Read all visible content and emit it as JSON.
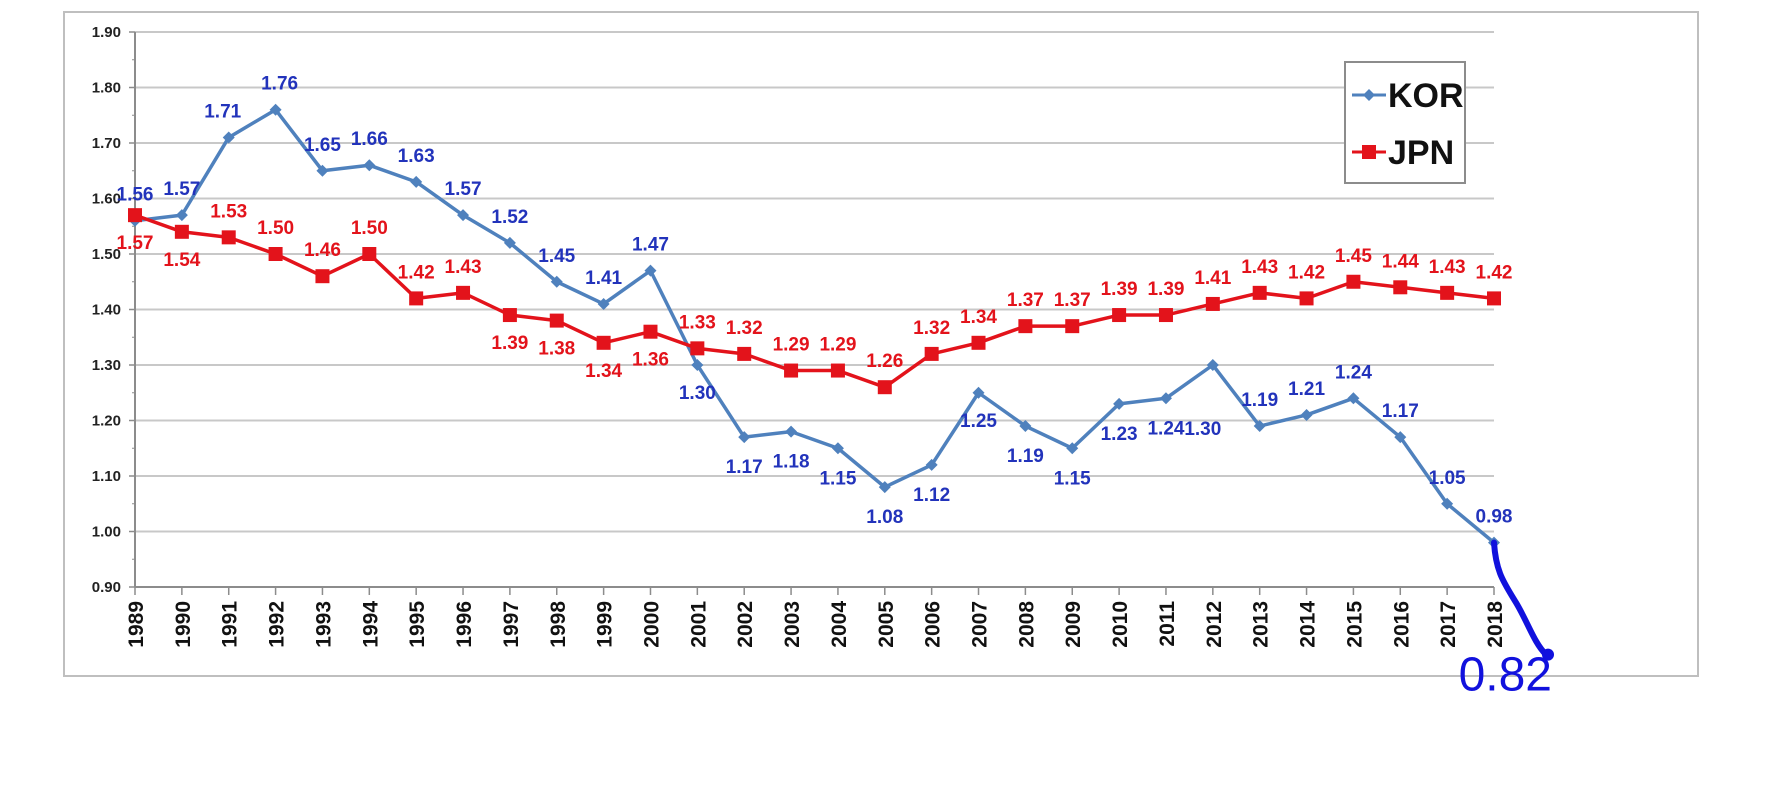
{
  "chart_data": {
    "type": "line",
    "title": "",
    "xlabel": "",
    "ylabel": "",
    "x": [
      "1989",
      "1990",
      "1991",
      "1992",
      "1993",
      "1994",
      "1995",
      "1996",
      "1997",
      "1998",
      "1999",
      "2000",
      "2001",
      "2002",
      "2003",
      "2004",
      "2005",
      "2006",
      "2007",
      "2008",
      "2009",
      "2010",
      "2011",
      "2012",
      "2013",
      "2014",
      "2015",
      "2016",
      "2017",
      "2018"
    ],
    "ylim": [
      0.9,
      1.9
    ],
    "yticks": [
      "0.90",
      "1.00",
      "1.10",
      "1.20",
      "1.30",
      "1.40",
      "1.50",
      "1.60",
      "1.70",
      "1.80",
      "1.90"
    ],
    "grid": true,
    "legend_position": "top-right",
    "series": [
      {
        "name": "KOR",
        "color": "#4f81bd",
        "label_color": "#2233bb",
        "marker": "diamond",
        "values": [
          1.56,
          1.57,
          1.71,
          1.76,
          1.65,
          1.66,
          1.63,
          1.57,
          1.52,
          1.45,
          1.41,
          1.47,
          1.3,
          1.17,
          1.18,
          1.15,
          1.08,
          1.12,
          1.25,
          1.19,
          1.15,
          1.23,
          1.24,
          1.3,
          1.19,
          1.21,
          1.24,
          1.17,
          1.05,
          0.98
        ],
        "labels": [
          "1.56",
          "1.57",
          "1.71",
          "1.76",
          "1.65",
          "1.66",
          "1.63",
          "1.57",
          "1.52",
          "1.45",
          "1.41",
          "1.47",
          "1.30",
          "1.17",
          "1.18",
          "1.15",
          "1.08",
          "1.12",
          "1.25",
          "1.19",
          "1.15",
          "1.23",
          "1.24",
          "1.30",
          "1.19",
          "1.21",
          "1.24",
          "1.17",
          "1.05",
          "0.98"
        ]
      },
      {
        "name": "JPN",
        "color": "#e3131b",
        "label_color": "#e3131b",
        "marker": "square",
        "values": [
          1.57,
          1.54,
          1.53,
          1.5,
          1.46,
          1.5,
          1.42,
          1.43,
          1.39,
          1.38,
          1.34,
          1.36,
          1.33,
          1.32,
          1.29,
          1.29,
          1.26,
          1.32,
          1.34,
          1.37,
          1.37,
          1.39,
          1.39,
          1.41,
          1.43,
          1.42,
          1.45,
          1.44,
          1.43,
          1.42
        ],
        "labels": [
          "1.57",
          "1.54",
          "1.53",
          "1.50",
          "1.46",
          "1.50",
          "1.42",
          "1.43",
          "1.39",
          "1.38",
          "1.34",
          "1.36",
          "1.33",
          "1.32",
          "1.29",
          "1.29",
          "1.26",
          "1.32",
          "1.34",
          "1.37",
          "1.37",
          "1.39",
          "1.39",
          "1.41",
          "1.43",
          "1.42",
          "1.45",
          "1.44",
          "1.43",
          "1.42"
        ]
      }
    ],
    "annotation": {
      "text": "0.82",
      "value": 0.82,
      "color": "#1111dd",
      "note": "hand-drawn extension from 2018 KOR point"
    }
  }
}
